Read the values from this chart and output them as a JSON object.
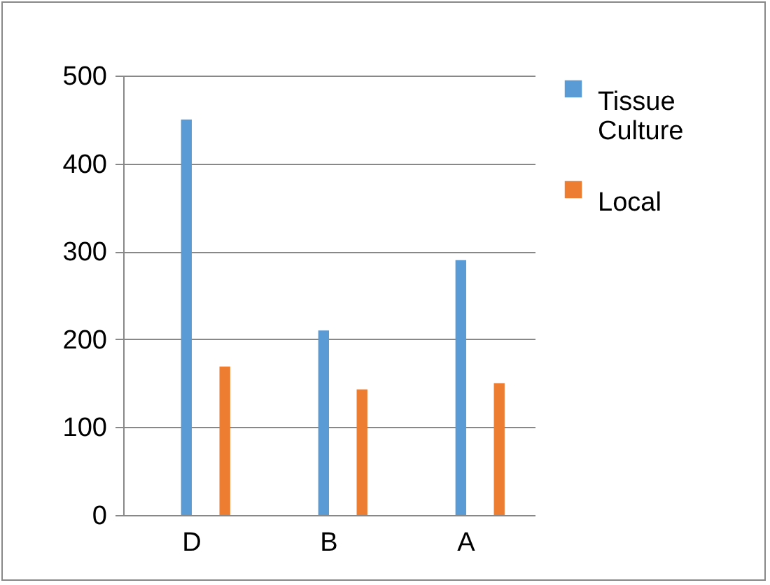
{
  "chart_data": {
    "type": "bar",
    "categories": [
      "D",
      "B",
      "A"
    ],
    "series": [
      {
        "name": "Tissue Culture",
        "color": "#5b9bd5",
        "values": [
          450,
          210,
          290
        ]
      },
      {
        "name": "Local",
        "color": "#ed7d31",
        "values": [
          169,
          143,
          150
        ]
      }
    ],
    "ylim": [
      0,
      500
    ],
    "yticks": [
      0,
      100,
      200,
      300,
      400,
      500
    ],
    "grid": "y",
    "legend": "right"
  }
}
